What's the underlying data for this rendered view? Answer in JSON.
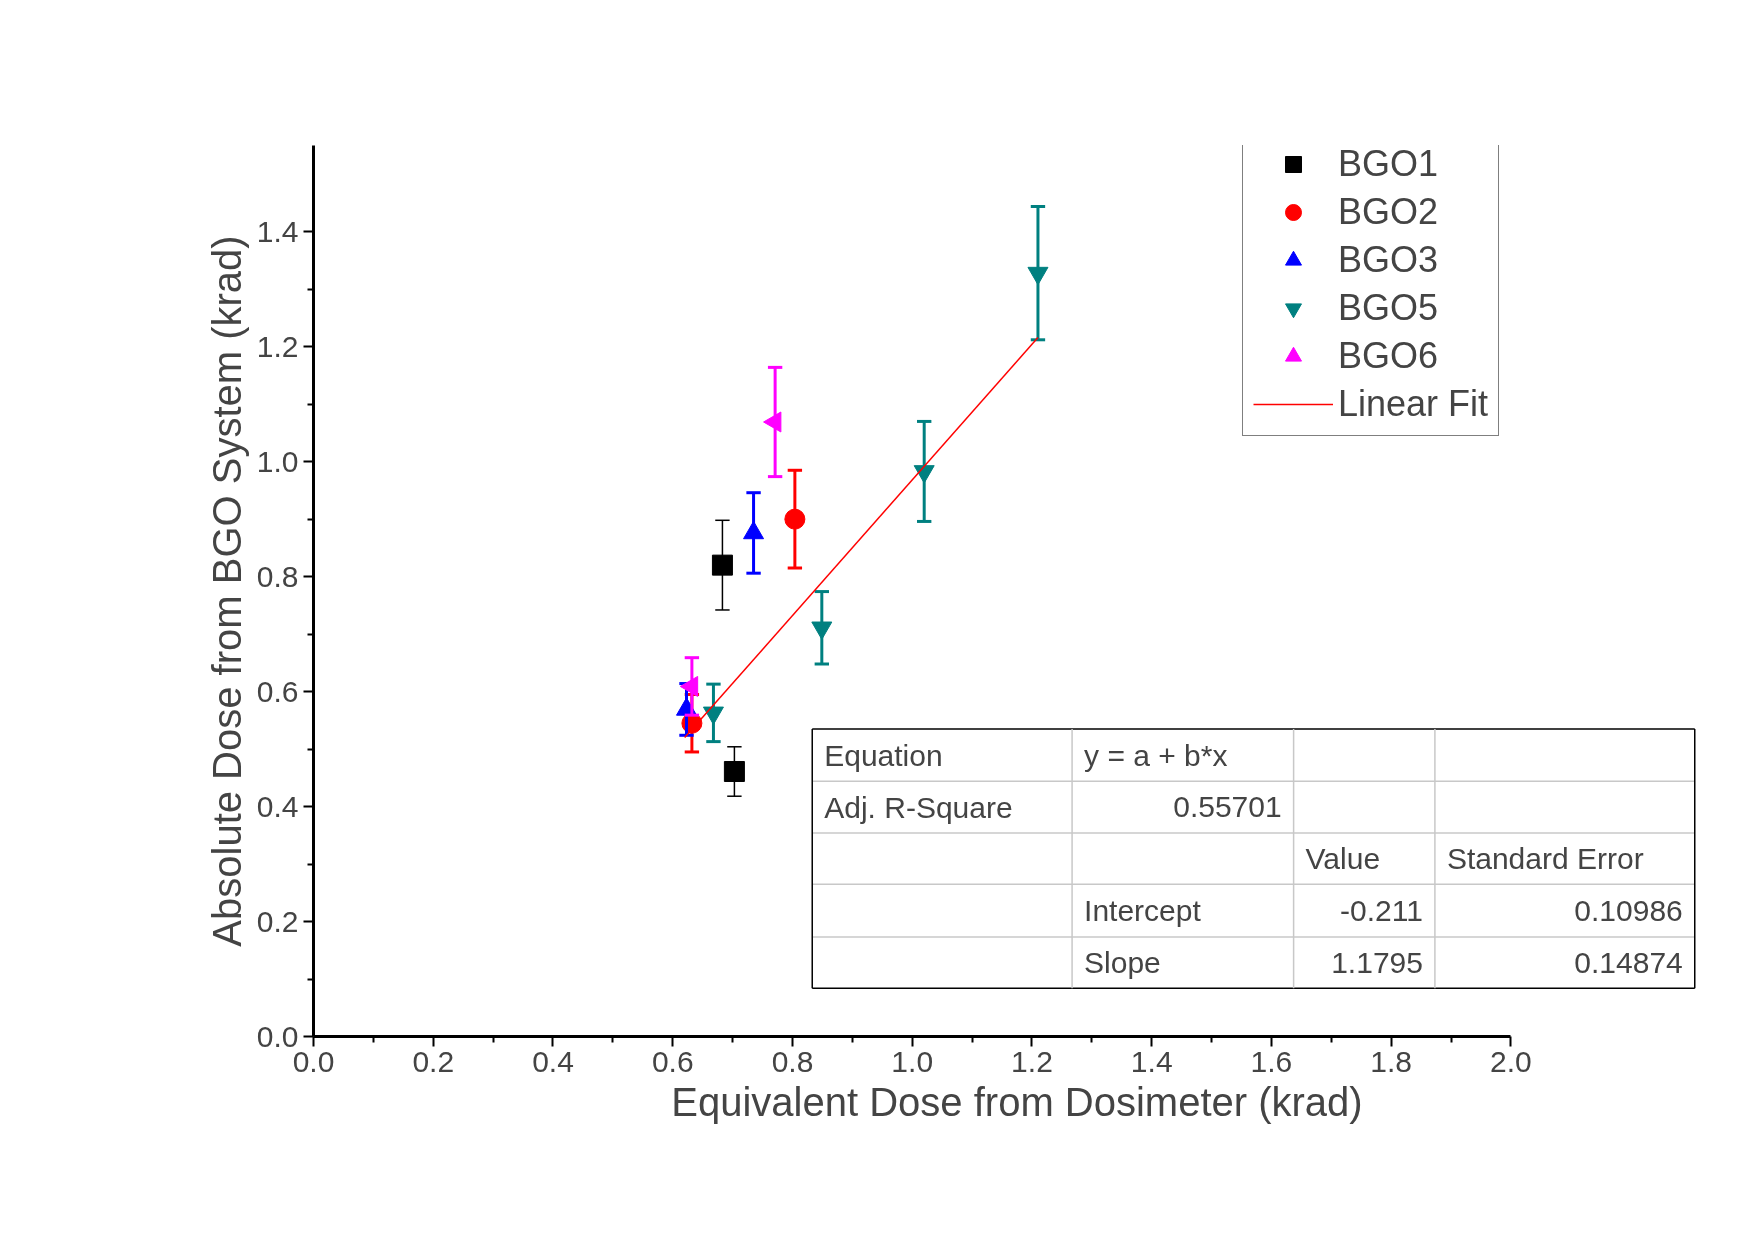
{
  "chart_data": {
    "type": "scatter",
    "xlabel": "Equivalent Dose from Dosimeter (krad)",
    "ylabel": "Absolute Dose from BGO System (krad)",
    "xlim": [
      0,
      2.0
    ],
    "ylim": [
      0,
      1.55
    ],
    "xticks": [
      {
        "value": 0,
        "label": "0.0"
      },
      0.2,
      0.4,
      0.6,
      0.8,
      {
        "value": 1.0,
        "label": "1.0"
      },
      1.2,
      1.4,
      1.6,
      1.8,
      {
        "value": 2.0,
        "label": "2.0"
      }
    ],
    "yticks": [
      {
        "value": 0,
        "label": "0.0"
      },
      0.2,
      0.4,
      0.6,
      0.8,
      {
        "value": 1.0,
        "label": "1.0"
      },
      1.2,
      1.4
    ],
    "grid": false,
    "legend": "top right",
    "series": [
      {
        "name": "BGO1",
        "color": "#000000",
        "marker": "square",
        "x": [
          0.683,
          0.703
        ],
        "values": [
          0.82,
          0.461
        ],
        "errors": [
          0.078,
          0.043
        ]
      },
      {
        "name": "BGO2",
        "color": "#ff0000",
        "marker": "circle",
        "x": [
          0.632,
          0.804
        ],
        "values": [
          0.545,
          0.9
        ],
        "errors": [
          0.05,
          0.085
        ]
      },
      {
        "name": "BGO3",
        "color": "#0000ff",
        "marker": "triangle",
        "x": [
          0.623,
          0.735
        ],
        "values": [
          0.569,
          0.876
        ],
        "errors": [
          0.045,
          0.07
        ]
      },
      {
        "name": "BGO5",
        "color": "#008080",
        "marker": "triangle_down",
        "x": [
          0.668,
          0.849,
          1.02,
          1.21
        ],
        "values": [
          0.563,
          0.711,
          0.983,
          1.328
        ],
        "errors": [
          0.05,
          0.063,
          0.087,
          0.116
        ]
      },
      {
        "name": "BGO6",
        "color": "#ff00ff",
        "marker": "triangle_left",
        "x": [
          0.632,
          0.771
        ],
        "values": [
          0.609,
          1.069
        ],
        "errors": [
          0.05,
          0.095
        ]
      },
      {
        "name": "Linear Fit",
        "type": "line",
        "color": "#ff0000",
        "marker": "none",
        "x": [
          0.62,
          1.21
        ],
        "values": [
          0.52,
          1.216
        ]
      }
    ],
    "annotations": [
      "Equation",
      "y = a + b*x",
      "Adj. R-Square",
      "0.55701",
      "Value",
      "Standard Error",
      "Intercept",
      "-0.211",
      "0.10986",
      "Slope",
      "1.1795",
      "0.14874"
    ]
  }
}
